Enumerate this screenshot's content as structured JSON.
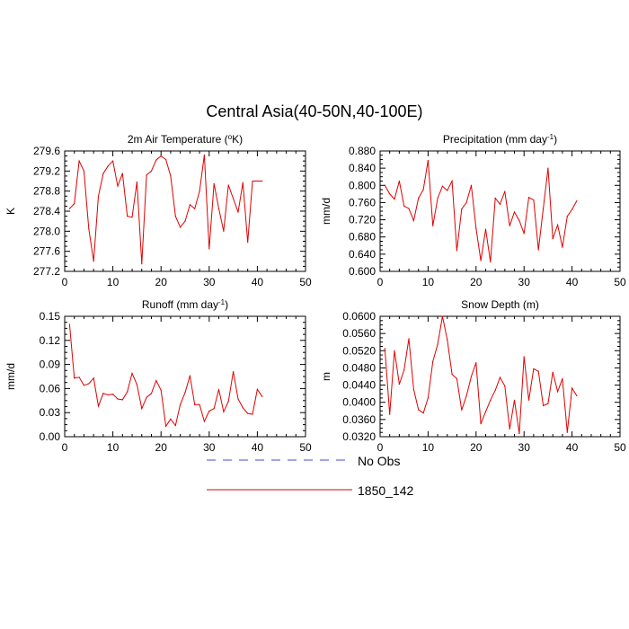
{
  "title": "Central Asia(40-50N,40-100E)",
  "legend": {
    "items": [
      {
        "label": "No Obs",
        "color": "#4a4adb",
        "dashed": true
      },
      {
        "label": "1850_142",
        "color": "#e00000",
        "dashed": false
      }
    ]
  },
  "chart_data": [
    {
      "type": "line",
      "title": "2m Air Temperature (°K)",
      "title_main": "2m Air Temperature (",
      "title_sup": "o",
      "title_tail": "K)",
      "xlabel": "",
      "ylabel": "K",
      "xlim": [
        0,
        50
      ],
      "ylim": [
        277.2,
        279.6
      ],
      "xticks": [
        0,
        10,
        20,
        30,
        40,
        50
      ],
      "xtick_labels": [
        "0",
        "10",
        "20",
        "30",
        "40",
        "50"
      ],
      "yticks": [
        277.2,
        277.6,
        278.0,
        278.4,
        278.8,
        279.2,
        279.6
      ],
      "ytick_labels": [
        "277.2",
        "277.6",
        "278.0",
        "278.4",
        "278.8",
        "279.2",
        "279.6"
      ],
      "series": [
        {
          "name": "1850_142",
          "color": "#e00000",
          "x": [
            1,
            2,
            3,
            4,
            5,
            6,
            7,
            8,
            9,
            10,
            11,
            12,
            13,
            14,
            15,
            16,
            17,
            18,
            19,
            20,
            21,
            22,
            23,
            24,
            25,
            26,
            27,
            28,
            29,
            30,
            31,
            32,
            33,
            34,
            35,
            36,
            37,
            38,
            39,
            40,
            41
          ],
          "values": [
            278.45,
            278.55,
            279.4,
            279.2,
            278.05,
            277.4,
            278.7,
            279.15,
            279.3,
            279.4,
            278.9,
            279.15,
            278.3,
            278.28,
            278.98,
            277.35,
            279.12,
            279.2,
            279.42,
            279.5,
            279.43,
            279.1,
            278.3,
            278.08,
            278.2,
            278.53,
            278.45,
            278.8,
            279.52,
            277.65,
            278.95,
            278.45,
            278.0,
            278.92,
            278.65,
            278.38,
            278.97,
            277.78,
            279.0,
            279.0,
            279.0
          ]
        }
      ]
    },
    {
      "type": "line",
      "title": "Precipitation (mm day-1)",
      "title_main": "Precipitation (mm day",
      "title_sup": "-1",
      "title_tail": ")",
      "xlabel": "",
      "ylabel": "mm/d",
      "xlim": [
        0,
        50
      ],
      "ylim": [
        0.6,
        0.88
      ],
      "xticks": [
        0,
        10,
        20,
        30,
        40,
        50
      ],
      "xtick_labels": [
        "0",
        "10",
        "20",
        "30",
        "40",
        "50"
      ],
      "yticks": [
        0.6,
        0.64,
        0.68,
        0.72,
        0.76,
        0.8,
        0.84,
        0.88
      ],
      "ytick_labels": [
        "0.600",
        "0.640",
        "0.680",
        "0.720",
        "0.760",
        "0.800",
        "0.840",
        "0.880"
      ],
      "series": [
        {
          "name": "1850_142",
          "color": "#e00000",
          "x": [
            1,
            2,
            3,
            4,
            5,
            6,
            7,
            8,
            9,
            10,
            11,
            12,
            13,
            14,
            15,
            16,
            17,
            18,
            19,
            20,
            21,
            22,
            23,
            24,
            25,
            26,
            27,
            28,
            29,
            30,
            31,
            32,
            33,
            34,
            35,
            36,
            37,
            38,
            39,
            40,
            41
          ],
          "values": [
            0.8,
            0.78,
            0.768,
            0.81,
            0.752,
            0.746,
            0.718,
            0.77,
            0.79,
            0.858,
            0.706,
            0.77,
            0.798,
            0.788,
            0.81,
            0.648,
            0.745,
            0.76,
            0.8,
            0.7,
            0.625,
            0.698,
            0.622,
            0.77,
            0.756,
            0.786,
            0.706,
            0.738,
            0.718,
            0.688,
            0.772,
            0.766,
            0.65,
            0.746,
            0.84,
            0.676,
            0.708,
            0.656,
            0.728,
            0.744,
            0.764
          ]
        }
      ]
    },
    {
      "type": "line",
      "title": "Runoff (mm day-1)",
      "title_main": "Runoff (mm day",
      "title_sup": "-1",
      "title_tail": ")",
      "xlabel": "",
      "ylabel": "mm/d",
      "xlim": [
        0,
        50
      ],
      "ylim": [
        0.0,
        0.15
      ],
      "xticks": [
        0,
        10,
        20,
        30,
        40,
        50
      ],
      "xtick_labels": [
        "0",
        "10",
        "20",
        "30",
        "40",
        "50"
      ],
      "yticks": [
        0.0,
        0.03,
        0.06,
        0.09,
        0.12,
        0.15
      ],
      "ytick_labels": [
        "0.00",
        "0.03",
        "0.06",
        "0.09",
        "0.12",
        "0.15"
      ],
      "series": [
        {
          "name": "1850_142",
          "color": "#e00000",
          "x": [
            1,
            2,
            3,
            4,
            5,
            6,
            7,
            8,
            9,
            10,
            11,
            12,
            13,
            14,
            15,
            16,
            17,
            18,
            19,
            20,
            21,
            22,
            23,
            24,
            25,
            26,
            27,
            28,
            29,
            30,
            31,
            32,
            33,
            34,
            35,
            36,
            37,
            38,
            39,
            40,
            41
          ],
          "values": [
            0.14,
            0.073,
            0.074,
            0.064,
            0.066,
            0.073,
            0.038,
            0.054,
            0.052,
            0.053,
            0.047,
            0.046,
            0.056,
            0.079,
            0.065,
            0.035,
            0.049,
            0.054,
            0.07,
            0.058,
            0.013,
            0.022,
            0.014,
            0.04,
            0.055,
            0.076,
            0.04,
            0.04,
            0.019,
            0.032,
            0.035,
            0.059,
            0.031,
            0.044,
            0.081,
            0.047,
            0.036,
            0.029,
            0.028,
            0.059,
            0.05
          ]
        }
      ]
    },
    {
      "type": "line",
      "title": "Snow Depth (m)",
      "title_main": "Snow Depth (m)",
      "title_sup": "",
      "title_tail": "",
      "xlabel": "",
      "ylabel": "m",
      "xlim": [
        0,
        50
      ],
      "ylim": [
        0.032,
        0.06
      ],
      "xticks": [
        0,
        10,
        20,
        30,
        40,
        50
      ],
      "xtick_labels": [
        "0",
        "10",
        "20",
        "30",
        "40",
        "50"
      ],
      "yticks": [
        0.032,
        0.036,
        0.04,
        0.044,
        0.048,
        0.052,
        0.056,
        0.06
      ],
      "ytick_labels": [
        "0.0320",
        "0.0360",
        "0.0400",
        "0.0440",
        "0.0480",
        "0.0520",
        "0.0560",
        "0.0600"
      ],
      "series": [
        {
          "name": "1850_142",
          "color": "#e00000",
          "x": [
            1,
            2,
            3,
            4,
            5,
            6,
            7,
            8,
            9,
            10,
            11,
            12,
            13,
            14,
            15,
            16,
            17,
            18,
            19,
            20,
            21,
            22,
            23,
            24,
            25,
            26,
            27,
            28,
            29,
            30,
            31,
            32,
            33,
            34,
            35,
            36,
            37,
            38,
            39,
            40,
            41
          ],
          "values": [
            0.0525,
            0.0372,
            0.052,
            0.0442,
            0.0475,
            0.0548,
            0.043,
            0.0383,
            0.0375,
            0.041,
            0.0495,
            0.0535,
            0.06,
            0.0545,
            0.0465,
            0.0455,
            0.0382,
            0.0415,
            0.046,
            0.0492,
            0.035,
            0.0378,
            0.0405,
            0.0428,
            0.0458,
            0.0438,
            0.0338,
            0.0405,
            0.0327,
            0.0506,
            0.0405,
            0.0478,
            0.0472,
            0.0392,
            0.0397,
            0.047,
            0.0425,
            0.0455,
            0.033,
            0.0433,
            0.0415
          ]
        }
      ]
    }
  ]
}
